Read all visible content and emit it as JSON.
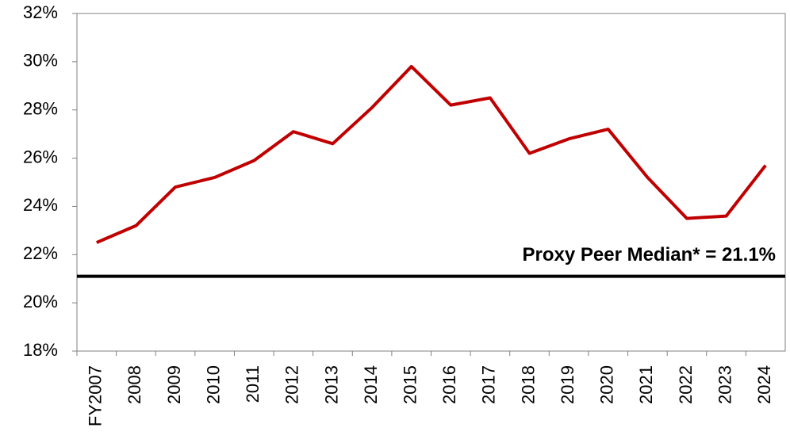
{
  "chart_data": {
    "type": "line",
    "categories": [
      "FY2007",
      "2008",
      "2009",
      "2010",
      "2011",
      "2012",
      "2013",
      "2014",
      "2015",
      "2016",
      "2017",
      "2018",
      "2019",
      "2020",
      "2021",
      "2022",
      "2023",
      "2024"
    ],
    "series": [
      {
        "color": "#c00000",
        "values": [
          22.5,
          23.2,
          24.8,
          25.2,
          25.9,
          27.1,
          26.6,
          28.1,
          29.8,
          28.2,
          28.5,
          26.2,
          26.8,
          27.2,
          25.2,
          23.5,
          23.6,
          25.7
        ]
      }
    ],
    "ylim": [
      18,
      32
    ],
    "yticks": [
      {
        "value": 18,
        "label": "18%"
      },
      {
        "value": 20,
        "label": "20%"
      },
      {
        "value": 22,
        "label": "22%"
      },
      {
        "value": 24,
        "label": "24%"
      },
      {
        "value": 26,
        "label": "26%"
      },
      {
        "value": 28,
        "label": "28%"
      },
      {
        "value": 30,
        "label": "30%"
      },
      {
        "value": 32,
        "label": "32%"
      }
    ],
    "reference_line": {
      "value": 21.1,
      "label": "Proxy Peer Median* = 21.1%",
      "color": "#000000"
    },
    "grid": false
  }
}
